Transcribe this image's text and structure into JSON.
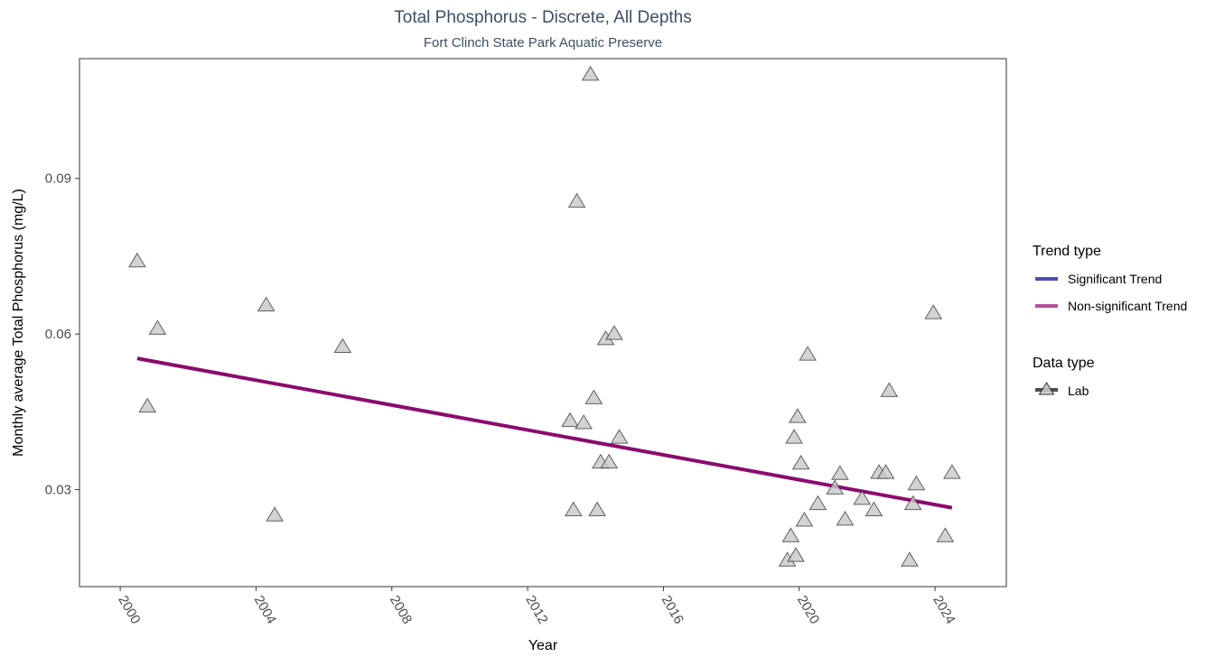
{
  "chart_data": {
    "type": "scatter",
    "title": "Total Phosphorus - Discrete, All Depths",
    "subtitle": "Fort Clinch State Park Aquatic Preserve",
    "xlabel": "Year",
    "ylabel": "Monthly average Total Phosphorus (mg/L)",
    "xlim": [
      1998.8,
      2026.1
    ],
    "ylim": [
      0.0113,
      0.1131
    ],
    "x_ticks": [
      2000,
      2004,
      2008,
      2012,
      2016,
      2020,
      2024
    ],
    "y_ticks": [
      0.03,
      0.06,
      0.09
    ],
    "y_tick_labels": [
      "0.03",
      "0.06",
      "0.09"
    ],
    "grid": false,
    "legend_position": "right",
    "series": [
      {
        "name": "Lab",
        "marker": "triangle",
        "color": "#c8c8c8",
        "points": [
          [
            2000.5,
            0.074
          ],
          [
            2000.8,
            0.046
          ],
          [
            2001.1,
            0.061
          ],
          [
            2004.3,
            0.0655
          ],
          [
            2004.55,
            0.025
          ],
          [
            2006.55,
            0.0575
          ],
          [
            2013.25,
            0.0432
          ],
          [
            2013.35,
            0.026
          ],
          [
            2013.45,
            0.0855
          ],
          [
            2013.65,
            0.0428
          ],
          [
            2013.85,
            0.11
          ],
          [
            2013.95,
            0.0476
          ],
          [
            2014.05,
            0.026
          ],
          [
            2014.15,
            0.0352
          ],
          [
            2014.3,
            0.059
          ],
          [
            2014.4,
            0.0352
          ],
          [
            2014.55,
            0.06
          ],
          [
            2014.7,
            0.04
          ],
          [
            2019.65,
            0.0163
          ],
          [
            2019.75,
            0.021
          ],
          [
            2019.85,
            0.04
          ],
          [
            2019.9,
            0.0172
          ],
          [
            2019.95,
            0.044
          ],
          [
            2020.05,
            0.035
          ],
          [
            2020.15,
            0.024
          ],
          [
            2020.25,
            0.056
          ],
          [
            2020.55,
            0.0272
          ],
          [
            2021.05,
            0.0302
          ],
          [
            2021.2,
            0.033
          ],
          [
            2021.35,
            0.0242
          ],
          [
            2021.85,
            0.0282
          ],
          [
            2022.2,
            0.026
          ],
          [
            2022.35,
            0.0332
          ],
          [
            2022.55,
            0.0332
          ],
          [
            2022.65,
            0.049
          ],
          [
            2023.25,
            0.0163
          ],
          [
            2023.35,
            0.0272
          ],
          [
            2023.45,
            0.031
          ],
          [
            2023.95,
            0.064
          ],
          [
            2024.3,
            0.021
          ],
          [
            2024.5,
            0.0332
          ]
        ]
      }
    ],
    "trend": {
      "name": "Non-significant Trend",
      "color": "#8b0a6e",
      "x": [
        2000.5,
        2024.5
      ],
      "y": [
        0.0553,
        0.0265
      ]
    },
    "legend": {
      "trend_type": {
        "title": "Trend type",
        "items": [
          {
            "label": "Significant Trend",
            "color": "#4b4db3"
          },
          {
            "label": "Non-significant Trend",
            "color": "#b7509a"
          }
        ]
      },
      "data_type": {
        "title": "Data type",
        "items": [
          {
            "label": "Lab",
            "color": "#4d4d4d"
          }
        ]
      }
    }
  }
}
